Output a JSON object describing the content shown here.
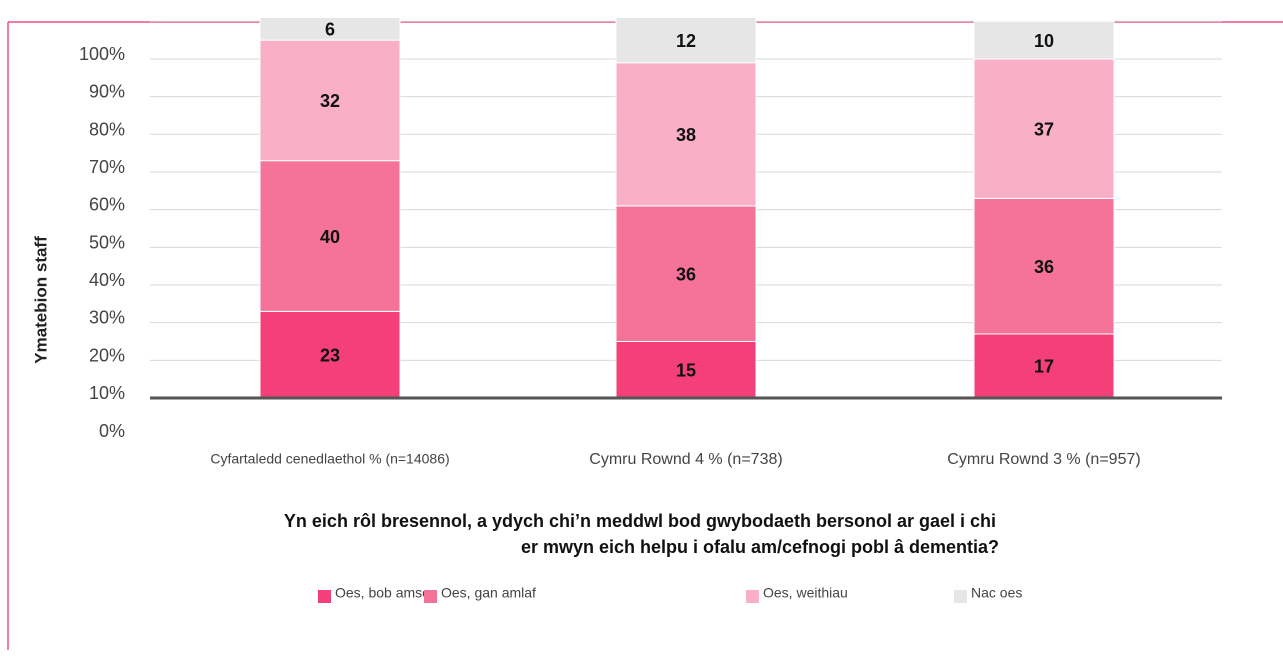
{
  "chart_data": {
    "type": "stacked_bar",
    "title": [
      "Yn eich rôl bresennol, a ydych chi’n meddwl bod gwybodaeth bersonol ar gael i chi",
      "er mwyn eich helpu i ofalu am/cefnogi pobl â dementia?"
    ],
    "y_label": "Ymatebion staff",
    "categories": [
      "Cyfartaledd cenedlaethol % (n=14086)",
      "Cymru Rownd 4 % (n=738)",
      "Cymru Rownd 3 % (n=957)"
    ],
    "series": [
      {
        "name": "Oes, bob amser",
        "color": "#f43f78",
        "values": [
          23,
          15,
          17
        ]
      },
      {
        "name": "Oes, gan amlaf",
        "color": "#f57399",
        "values": [
          40,
          36,
          36
        ]
      },
      {
        "name": "Oes, weithiau",
        "color": "#f9afc6",
        "values": [
          32,
          38,
          37
        ]
      },
      {
        "name": "Nac oes",
        "color": "#e6e6e6",
        "values": [
          6,
          12,
          10
        ]
      }
    ],
    "ylim": [
      0,
      103
    ],
    "yticks": [
      {
        "value": 0,
        "label": "0%"
      },
      {
        "value": 10,
        "label": "10%"
      },
      {
        "value": 20,
        "label": "20%"
      },
      {
        "value": 30,
        "label": "30%"
      },
      {
        "value": 40,
        "label": "40%"
      },
      {
        "value": 50,
        "label": "50%"
      },
      {
        "value": 60,
        "label": "60%"
      },
      {
        "value": 70,
        "label": "70%"
      },
      {
        "value": 80,
        "label": "80%"
      },
      {
        "value": 90,
        "label": "90%"
      },
      {
        "value": 100,
        "label": "100%"
      }
    ],
    "grid": true
  }
}
